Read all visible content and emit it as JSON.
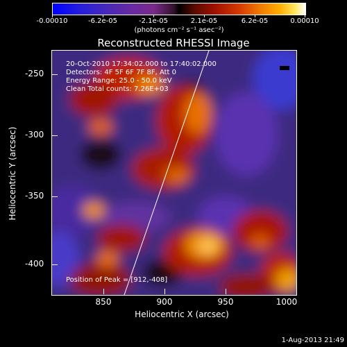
{
  "colorbar": {
    "labels": [
      "-0.00010",
      "-6.2e-05",
      "-2.1e-05",
      "2.1e-05",
      "6.2e-05",
      "0.00010"
    ],
    "units": "(photons cm⁻² s⁻¹ asec⁻²)"
  },
  "title": "Reconstructed RHESSI Image",
  "info": {
    "time": "20-Oct-2010 17:34:02.000 to 17:40:02.000",
    "detectors": "Detectors: 4F 5F 6F 7F 8F, Att 0",
    "energy": "Energy Range: 25.0 - 50.0 keV",
    "clean": "Clean    Total counts: 7.26E+03",
    "peak": "Position of Peak = [912,-408]"
  },
  "axes": {
    "xlabel": "Heliocentric X (arcsec)",
    "ylabel": "Heliocentric Y (arcsec)",
    "xticks": [
      "850",
      "900",
      "950",
      "1000"
    ],
    "yticks": [
      "-250",
      "-300",
      "-350",
      "-400"
    ]
  },
  "stamp": "1-Aug-2013 21:49"
}
